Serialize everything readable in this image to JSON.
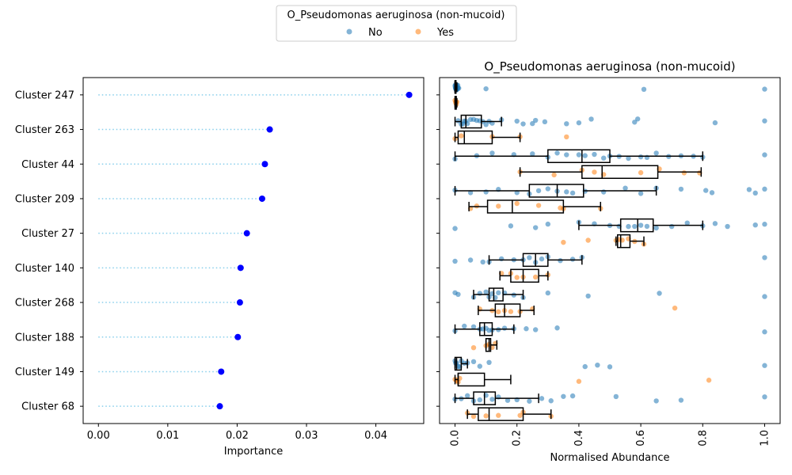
{
  "legend": {
    "title": "O_Pseudomonas aeruginosa (non-mucoid)",
    "entries": [
      {
        "label": "No",
        "color": "#1f77b4"
      },
      {
        "label": "Yes",
        "color": "#ff7f0e"
      }
    ],
    "placement": "top-center"
  },
  "chart_data": [
    {
      "type": "scatter",
      "subtype": "lollipop",
      "title": "",
      "xlabel": "Importance",
      "ylabel": "",
      "xlim": [
        -0.0022,
        0.0469
      ],
      "xticks": [
        "0.00",
        "0.01",
        "0.02",
        "0.03",
        "0.04"
      ],
      "xtick_values": [
        0,
        0.01,
        0.02,
        0.03,
        0.04
      ],
      "categories": [
        "Cluster 247",
        "Cluster 263",
        "Cluster 44",
        "Cluster 209",
        "Cluster 27",
        "Cluster 140",
        "Cluster 268",
        "Cluster 188",
        "Cluster 149",
        "Cluster 68"
      ],
      "values": [
        0.0448,
        0.0247,
        0.024,
        0.0236,
        0.0214,
        0.0205,
        0.0204,
        0.0201,
        0.0177,
        0.0175
      ],
      "marker_color": "#0000ff",
      "line_color": "#87ceeb",
      "line_style": "dotted",
      "grid": false
    },
    {
      "type": "box",
      "overlay": "strip",
      "orientation": "horizontal",
      "title": "O_Pseudomonas aeruginosa (non-mucoid)",
      "xlabel": "Normalised Abundance",
      "ylabel": "",
      "xlim": [
        -0.05,
        1.05
      ],
      "xticks": [
        "0.0",
        "0.2",
        "0.4",
        "0.6",
        "0.8",
        "1.0"
      ],
      "xtick_values": [
        0,
        0.2,
        0.4,
        0.6,
        0.8,
        1.0
      ],
      "categories": [
        "Cluster 247",
        "Cluster 263",
        "Cluster 44",
        "Cluster 209",
        "Cluster 27",
        "Cluster 140",
        "Cluster 268",
        "Cluster 188",
        "Cluster 149",
        "Cluster 68"
      ],
      "hue_levels": [
        "No",
        "Yes"
      ],
      "series": [
        {
          "name": "No",
          "color": "#1f77b4",
          "boxes": [
            {
              "min": 0,
              "q1": 0,
              "median": 0,
              "q3": 0.003,
              "max": 0.006
            },
            {
              "min": 0,
              "q1": 0.02,
              "median": 0.035,
              "q3": 0.085,
              "max": 0.15
            },
            {
              "min": 0,
              "q1": 0.3,
              "median": 0.41,
              "q3": 0.5,
              "max": 0.8
            },
            {
              "min": 0,
              "q1": 0.24,
              "median": 0.33,
              "q3": 0.415,
              "max": 0.65
            },
            {
              "min": 0.4,
              "q1": 0.535,
              "median": 0.59,
              "q3": 0.64,
              "max": 0.8
            },
            {
              "min": 0.11,
              "q1": 0.22,
              "median": 0.26,
              "q3": 0.3,
              "max": 0.41
            },
            {
              "min": 0.06,
              "q1": 0.11,
              "median": 0.125,
              "q3": 0.155,
              "max": 0.22
            },
            {
              "min": 0,
              "q1": 0.08,
              "median": 0.095,
              "q3": 0.12,
              "max": 0.19
            },
            {
              "min": 0,
              "q1": 0,
              "median": 0.005,
              "q3": 0.02,
              "max": 0.04
            },
            {
              "min": 0,
              "q1": 0.06,
              "median": 0.095,
              "q3": 0.13,
              "max": 0.27
            }
          ],
          "points": [
            [
              0.003,
              0.005,
              0.01,
              0.004,
              0.002,
              0.008,
              0.001,
              0.006,
              0.012,
              0.007,
              0.003,
              0.0,
              0.002,
              0.005,
              0.001,
              0.009,
              0.004,
              0.1,
              0.61,
              1.0
            ],
            [
              0.01,
              0.02,
              0.025,
              0.03,
              0.035,
              0.04,
              0.05,
              0.06,
              0.07,
              0.08,
              0.09,
              0.1,
              0.11,
              0.12,
              0.15,
              0.2,
              0.22,
              0.25,
              0.26,
              0.29,
              0.36,
              0.4,
              0.44,
              0.58,
              0.59,
              0.84,
              1.0
            ],
            [
              0.0,
              0.07,
              0.12,
              0.19,
              0.25,
              0.3,
              0.33,
              0.36,
              0.4,
              0.42,
              0.45,
              0.48,
              0.5,
              0.53,
              0.56,
              0.6,
              0.62,
              0.65,
              0.69,
              0.73,
              0.77,
              0.8,
              1.0
            ],
            [
              0.0,
              0.05,
              0.1,
              0.14,
              0.2,
              0.24,
              0.27,
              0.3,
              0.33,
              0.36,
              0.38,
              0.42,
              0.48,
              0.55,
              0.6,
              0.65,
              0.73,
              0.81,
              0.83,
              0.95,
              0.97,
              1.0
            ],
            [
              0.0,
              0.18,
              0.26,
              0.3,
              0.4,
              0.45,
              0.5,
              0.53,
              0.56,
              0.58,
              0.6,
              0.62,
              0.65,
              0.7,
              0.75,
              0.8,
              0.84,
              0.88,
              0.97,
              1.0
            ],
            [
              0.0,
              0.05,
              0.09,
              0.11,
              0.15,
              0.19,
              0.22,
              0.24,
              0.26,
              0.28,
              0.3,
              0.34,
              0.38,
              0.41,
              1.0
            ],
            [
              0.0,
              0.01,
              0.06,
              0.08,
              0.1,
              0.11,
              0.12,
              0.13,
              0.14,
              0.16,
              0.19,
              0.22,
              0.3,
              0.43,
              0.66,
              1.0
            ],
            [
              0.0,
              0.03,
              0.06,
              0.08,
              0.09,
              0.1,
              0.11,
              0.12,
              0.14,
              0.16,
              0.19,
              0.23,
              0.26,
              0.33,
              1.0
            ],
            [
              0.0,
              0.002,
              0.005,
              0.01,
              0.015,
              0.02,
              0.03,
              0.04,
              0.06,
              0.08,
              0.11,
              0.42,
              0.46,
              0.5,
              1.0
            ],
            [
              0.0,
              0.02,
              0.04,
              0.06,
              0.08,
              0.1,
              0.12,
              0.14,
              0.17,
              0.2,
              0.24,
              0.28,
              0.31,
              0.35,
              0.38,
              0.52,
              0.65,
              0.73,
              1.0
            ]
          ]
        },
        {
          "name": "Yes",
          "color": "#ff7f0e",
          "boxes": [
            {
              "min": 0,
              "q1": 0,
              "median": 0.002,
              "q3": 0.004,
              "max": 0.006
            },
            {
              "min": 0,
              "q1": 0.01,
              "median": 0.03,
              "q3": 0.12,
              "max": 0.21
            },
            {
              "min": 0.21,
              "q1": 0.41,
              "median": 0.475,
              "q3": 0.655,
              "max": 0.795
            },
            {
              "min": 0.045,
              "q1": 0.105,
              "median": 0.185,
              "q3": 0.35,
              "max": 0.47
            },
            {
              "min": 0.52,
              "q1": 0.525,
              "median": 0.535,
              "q3": 0.565,
              "max": 0.61
            },
            {
              "min": 0.145,
              "q1": 0.18,
              "median": 0.22,
              "q3": 0.27,
              "max": 0.3
            },
            {
              "min": 0.075,
              "q1": 0.13,
              "median": 0.16,
              "q3": 0.21,
              "max": 0.255
            },
            {
              "min": 0.1,
              "q1": 0.1,
              "median": 0.11,
              "q3": 0.115,
              "max": 0.135
            },
            {
              "min": 0,
              "q1": 0.01,
              "median": 0.01,
              "q3": 0.095,
              "max": 0.18
            },
            {
              "min": 0.04,
              "q1": 0.075,
              "median": 0.11,
              "q3": 0.22,
              "max": 0.31
            }
          ],
          "points": [
            [
              0.0,
              0.002,
              0.004,
              0.006,
              0.003
            ],
            [
              0.0,
              0.02,
              0.12,
              0.21,
              0.36
            ],
            [
              0.21,
              0.32,
              0.41,
              0.45,
              0.48,
              0.6,
              0.66,
              0.74,
              0.79
            ],
            [
              0.05,
              0.07,
              0.14,
              0.2,
              0.27,
              0.34,
              0.35,
              0.47
            ],
            [
              0.35,
              0.43,
              0.52,
              0.53,
              0.54,
              0.56,
              0.58,
              0.61
            ],
            [
              0.15,
              0.18,
              0.2,
              0.22,
              0.26,
              0.3
            ],
            [
              0.08,
              0.12,
              0.14,
              0.16,
              0.18,
              0.21,
              0.25,
              0.71
            ],
            [
              0.06,
              0.1,
              0.11,
              0.12,
              0.13
            ],
            [
              0.0,
              0.005,
              0.01,
              0.015,
              0.4,
              0.82
            ],
            [
              0.04,
              0.06,
              0.1,
              0.14,
              0.21,
              0.22,
              0.31
            ]
          ]
        }
      ],
      "grid": false
    }
  ]
}
